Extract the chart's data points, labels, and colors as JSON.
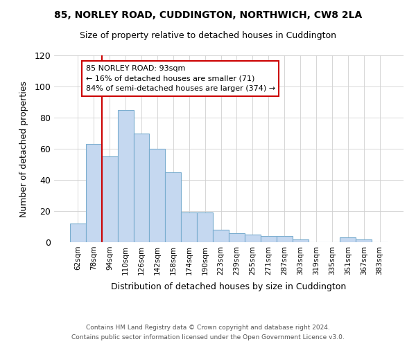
{
  "title": "85, NORLEY ROAD, CUDDINGTON, NORTHWICH, CW8 2LA",
  "subtitle": "Size of property relative to detached houses in Cuddington",
  "xlabel": "Distribution of detached houses by size in Cuddington",
  "ylabel": "Number of detached properties",
  "footnote1": "Contains HM Land Registry data © Crown copyright and database right 2024.",
  "footnote2": "Contains public sector information licensed under the Open Government Licence v3.0.",
  "bar_labels": [
    "62sqm",
    "78sqm",
    "94sqm",
    "110sqm",
    "126sqm",
    "142sqm",
    "158sqm",
    "174sqm",
    "190sqm",
    "223sqm",
    "239sqm",
    "255sqm",
    "271sqm",
    "287sqm",
    "303sqm",
    "319sqm",
    "335sqm",
    "351sqm",
    "367sqm",
    "383sqm"
  ],
  "bar_values": [
    12,
    63,
    55,
    85,
    70,
    60,
    45,
    19,
    19,
    8,
    6,
    5,
    4,
    4,
    2,
    0,
    0,
    3,
    2,
    0
  ],
  "bar_color": "#c5d8f0",
  "bar_edge_color": "#7aadcf",
  "vline_color": "#cc0000",
  "annotation_title": "85 NORLEY ROAD: 93sqm",
  "annotation_line1": "← 16% of detached houses are smaller (71)",
  "annotation_line2": "84% of semi-detached houses are larger (374) →",
  "annotation_box_color": "#ffffff",
  "annotation_box_edge": "#cc0000",
  "ylim": [
    0,
    120
  ],
  "yticks": [
    0,
    20,
    40,
    60,
    80,
    100,
    120
  ],
  "background_color": "#ffffff",
  "grid_color": "#d0d0d0"
}
